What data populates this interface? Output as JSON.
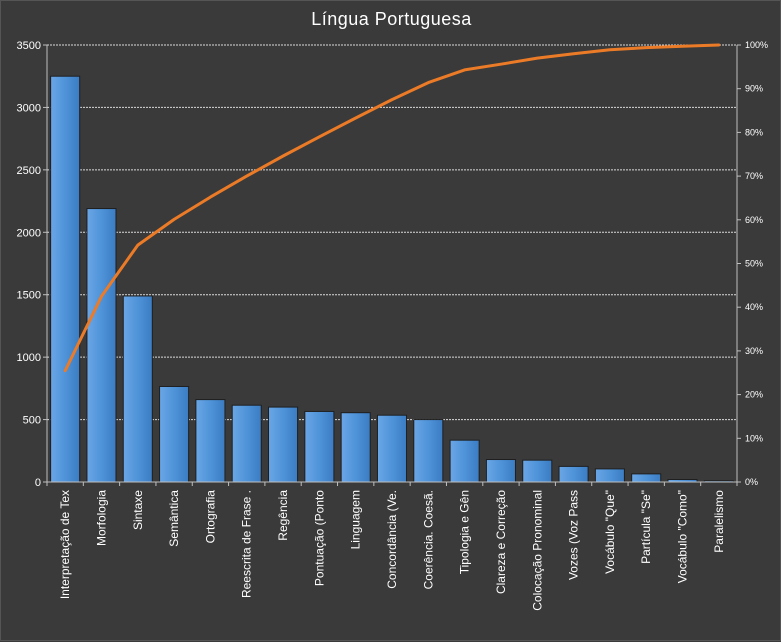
{
  "chart_data": {
    "type": "bar",
    "title": "Língua Portuguesa",
    "categories": [
      "Interpretação de Tex",
      "Morfologia",
      "Sintaxe",
      "Semântica",
      "Ortografia",
      "Reescrita de Frase .",
      "Regência",
      "Pontuação (Ponto",
      "Linguagem",
      "Concordância (Ve.",
      "Coerência. Coesã.",
      "Tipologia e Gên",
      "Clareza e Correção",
      "Colocação Pronominal",
      "Vozes (Voz Pass",
      "Vocábulo \"Que\"",
      "Partícula \"Se\"",
      "Vocábulo \"Como\"",
      "Paralelismo"
    ],
    "series": [
      {
        "type": "bar",
        "values": [
          3250,
          2190,
          1490,
          765,
          660,
          615,
          600,
          565,
          555,
          535,
          500,
          335,
          180,
          175,
          125,
          105,
          65,
          20,
          10
        ],
        "color": "#4f93d8"
      },
      {
        "type": "line",
        "axis": "secondary",
        "values": [
          25.5,
          42.5,
          54.2,
          60.1,
          65.2,
          70.0,
          74.6,
          79.0,
          83.3,
          87.5,
          91.4,
          94.3,
          95.6,
          97.0,
          98.0,
          98.9,
          99.4,
          99.7,
          100.0
        ],
        "color": "#ec7b27"
      }
    ],
    "ylim": [
      0,
      3500
    ],
    "yticks": [
      "0",
      "500",
      "1000",
      "1500",
      "2000",
      "2500",
      "3000",
      "3500"
    ],
    "y2lim": [
      0,
      100
    ],
    "y2ticks": [
      "0%",
      "10%",
      "20%",
      "30%",
      "40%",
      "50%",
      "60%",
      "70%",
      "80%",
      "90%",
      "100%"
    ],
    "grid": true
  }
}
